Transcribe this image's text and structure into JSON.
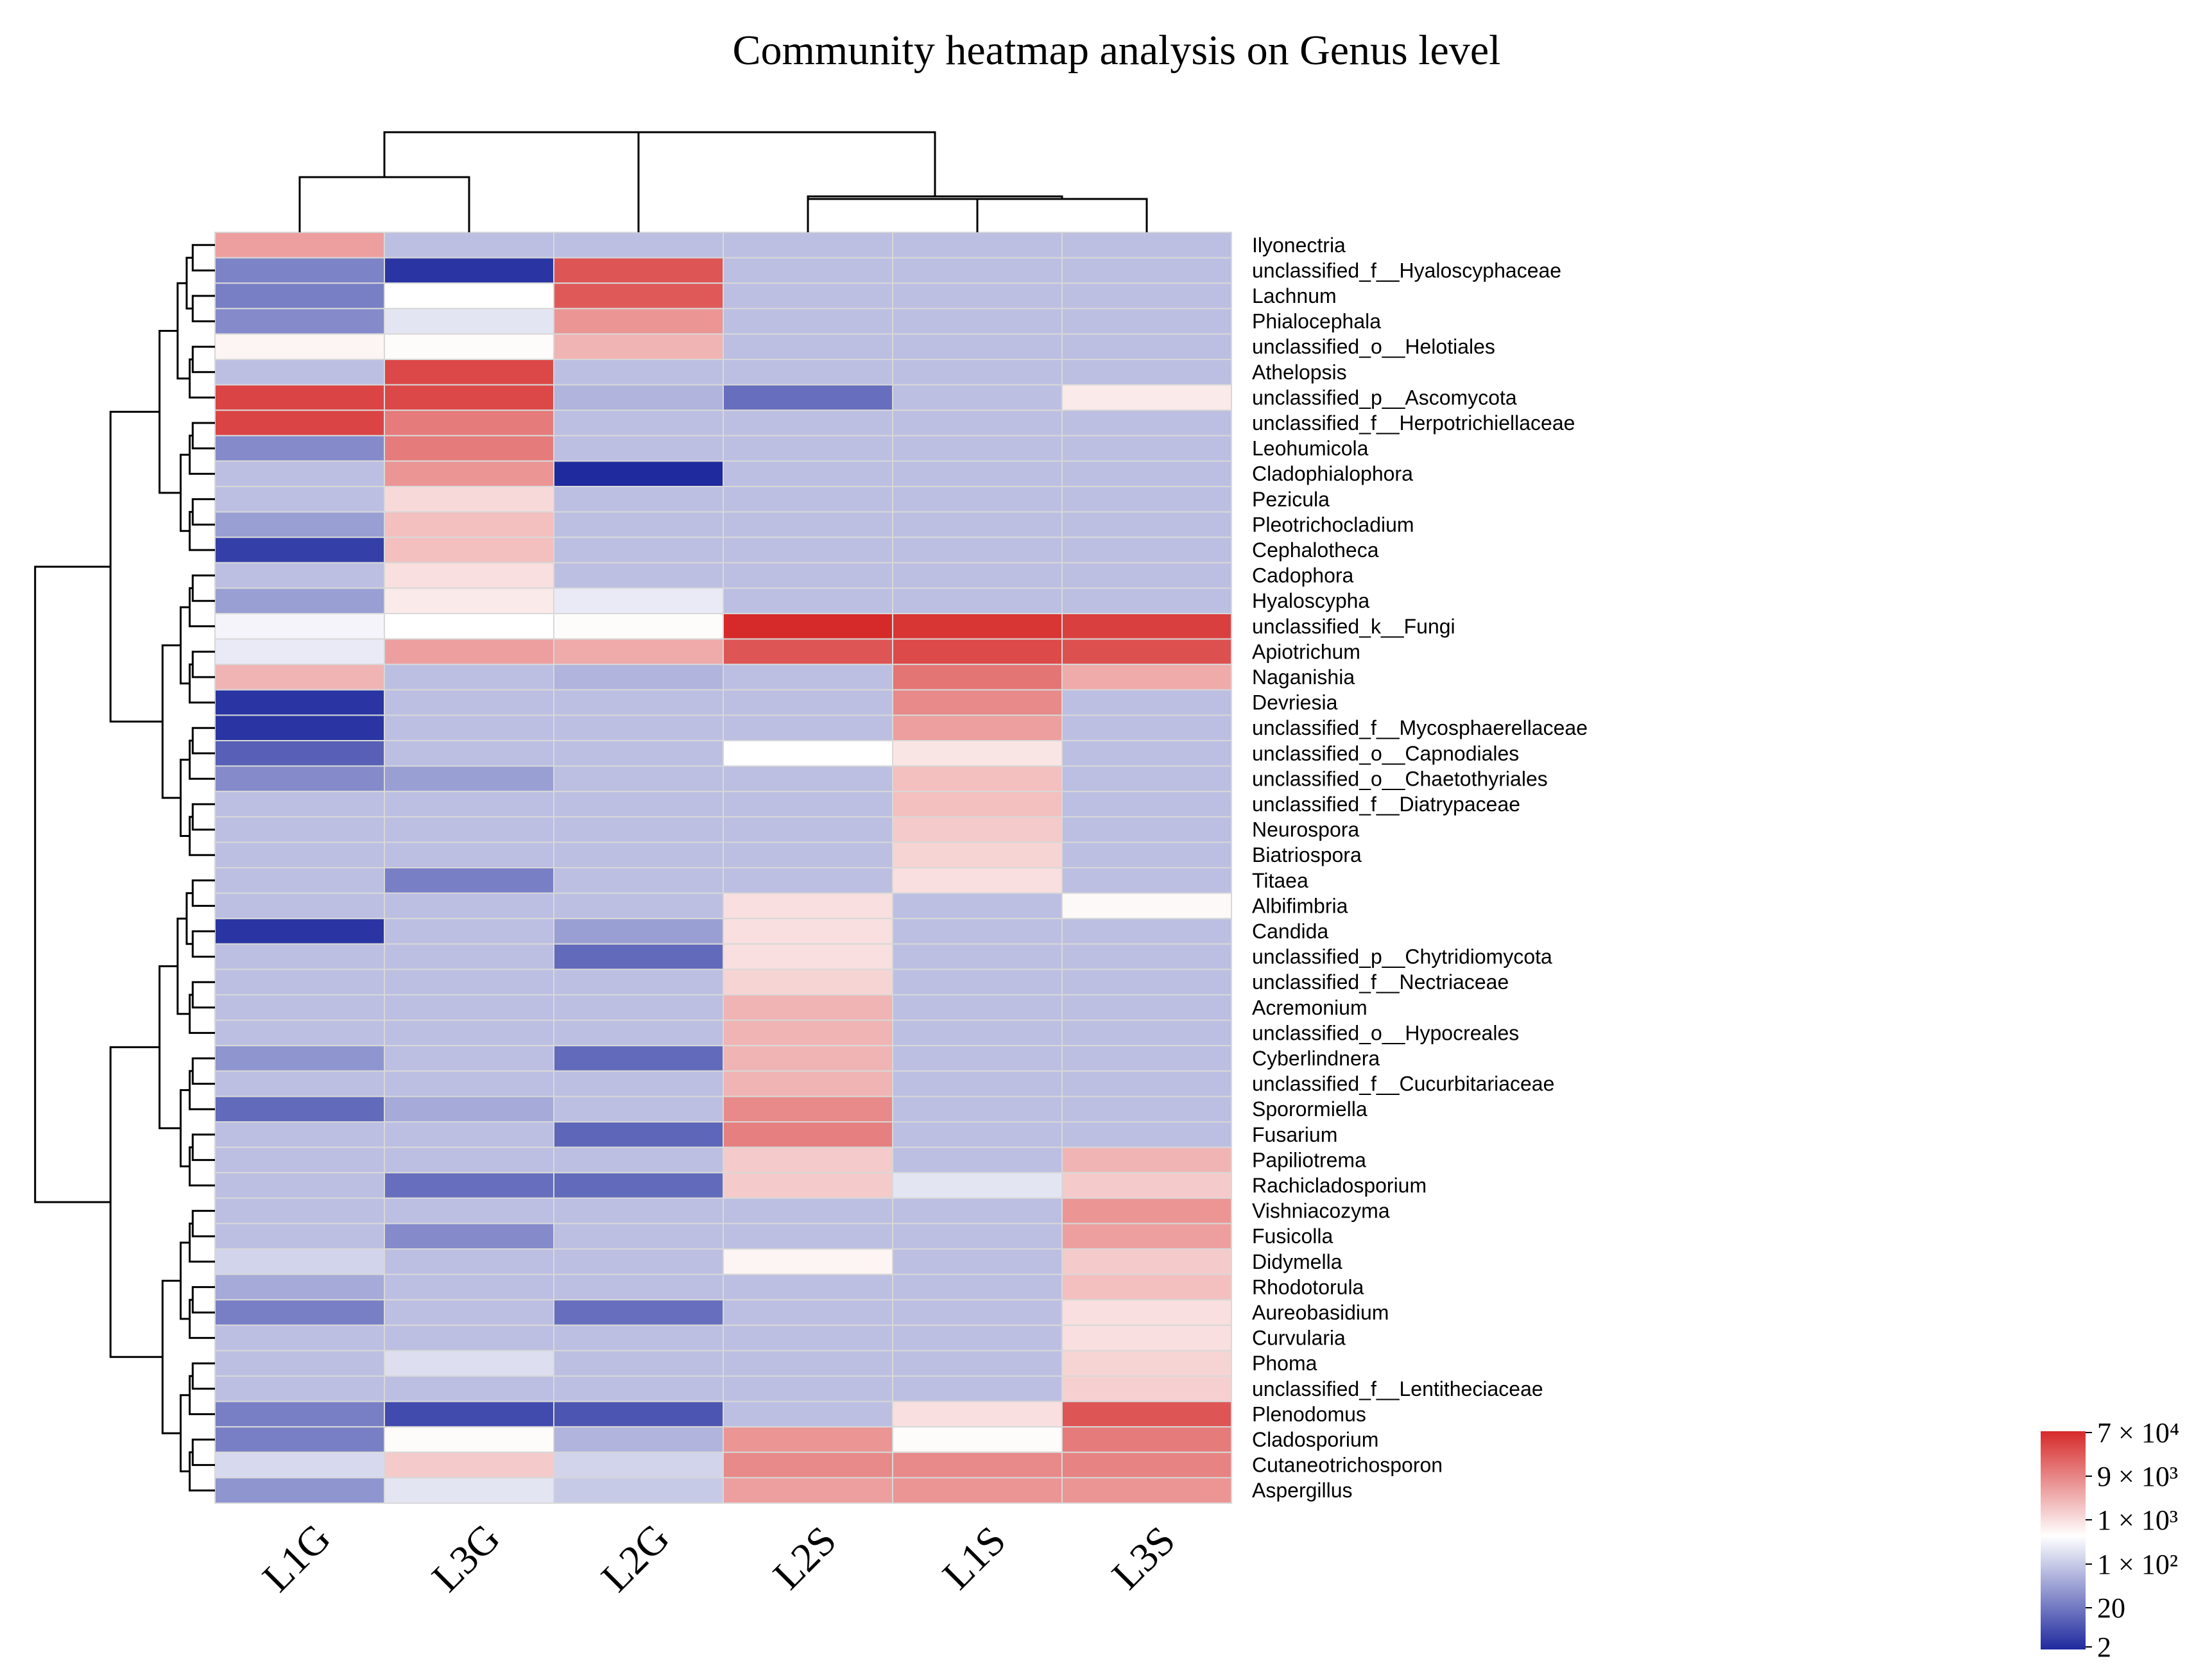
{
  "chart_data": {
    "type": "heatmap",
    "title": "Community heatmap analysis on Genus level",
    "columns": [
      "L1G",
      "L3G",
      "L2G",
      "L2S",
      "L1S",
      "L3S"
    ],
    "rows": [
      "Ilyonectria",
      "unclassified_f__Hyaloscyphaceae",
      "Lachnum",
      "Phialocephala",
      "unclassified_o__Helotiales",
      "Athelopsis",
      "unclassified_p__Ascomycota",
      "unclassified_f__Herpotrichiellaceae",
      "Leohumicola",
      "Cladophialophora",
      "Pezicula",
      "Pleotrichocladium",
      "Cephalotheca",
      "Cadophora",
      "Hyaloscypha",
      "unclassified_k__Fungi",
      "Apiotrichum",
      "Naganishia",
      "Devriesia",
      "unclassified_f__Mycosphaerellaceae",
      "unclassified_o__Capnodiales",
      "unclassified_o__Chaetothyriales",
      "unclassified_f__Diatrypaceae",
      "Neurospora",
      "Biatriospora",
      "Titaea",
      "Albifimbria",
      "Candida",
      "unclassified_p__Chytridiomycota",
      "unclassified_f__Nectriaceae",
      "Acremonium",
      "unclassified_o__Hypocreales",
      "Cyberlindnera",
      "unclassified_f__Cucurbitariaceae",
      "Sporormiella",
      "Fusarium",
      "Papiliotrema",
      "Rachicladosporium",
      "Vishniacozyma",
      "Fusicolla",
      "Didymella",
      "Rhodotorula",
      "Aureobasidium",
      "Curvularia",
      "Phoma",
      "unclassified_f__Lentitheciaceae",
      "Plenodomus",
      "Cladosporium",
      "Cutaneotrichosporon",
      "Aspergillus"
    ],
    "color_scale_note": "values are signed color positions: -1 = dark blue (2), 0 = white (~200), +1 = red (7 x 10^4); background taxa absent ~ -0.28",
    "values": [
      [
        0.45,
        -0.3,
        -0.3,
        -0.3,
        -0.3,
        -0.3
      ],
      [
        -0.58,
        -0.95,
        0.8,
        -0.3,
        -0.3,
        -0.3
      ],
      [
        -0.6,
        0.0,
        0.78,
        -0.3,
        -0.3,
        -0.3
      ],
      [
        -0.55,
        -0.12,
        0.5,
        -0.3,
        -0.3,
        -0.3
      ],
      [
        0.05,
        0.02,
        0.35,
        -0.3,
        -0.3,
        -0.3
      ],
      [
        -0.3,
        0.86,
        -0.3,
        -0.3,
        -0.3,
        -0.3
      ],
      [
        0.88,
        0.86,
        -0.35,
        -0.68,
        -0.3,
        0.1
      ],
      [
        0.88,
        0.62,
        -0.3,
        -0.3,
        -0.3,
        -0.3
      ],
      [
        -0.55,
        0.62,
        -0.3,
        -0.3,
        -0.3,
        -0.3
      ],
      [
        -0.3,
        0.5,
        -1.0,
        -0.3,
        -0.3,
        -0.3
      ],
      [
        -0.3,
        0.18,
        -0.3,
        -0.3,
        -0.3,
        -0.3
      ],
      [
        -0.45,
        0.3,
        -0.3,
        -0.3,
        -0.3,
        -0.3
      ],
      [
        -0.9,
        0.3,
        -0.3,
        -0.3,
        -0.3,
        -0.3
      ],
      [
        -0.3,
        0.15,
        -0.3,
        -0.3,
        -0.3,
        -0.3
      ],
      [
        -0.45,
        0.1,
        -0.1,
        -0.3,
        -0.3,
        -0.3
      ],
      [
        -0.05,
        0.0,
        0.02,
        1.0,
        0.95,
        0.9
      ],
      [
        -0.1,
        0.45,
        0.4,
        0.8,
        0.85,
        0.82
      ],
      [
        0.35,
        -0.3,
        -0.35,
        -0.3,
        0.65,
        0.4
      ],
      [
        -0.95,
        -0.3,
        -0.3,
        -0.3,
        0.55,
        -0.3
      ],
      [
        -0.95,
        -0.3,
        -0.3,
        -0.3,
        0.45,
        -0.3
      ],
      [
        -0.75,
        -0.3,
        -0.3,
        0.0,
        0.12,
        -0.3
      ],
      [
        -0.55,
        -0.45,
        -0.3,
        -0.3,
        0.3,
        -0.3
      ],
      [
        -0.3,
        -0.3,
        -0.3,
        -0.3,
        0.3,
        -0.3
      ],
      [
        -0.3,
        -0.3,
        -0.3,
        -0.3,
        0.25,
        -0.3
      ],
      [
        -0.3,
        -0.3,
        -0.3,
        -0.3,
        0.2,
        -0.3
      ],
      [
        -0.3,
        -0.6,
        -0.3,
        -0.3,
        0.15,
        -0.3
      ],
      [
        -0.3,
        -0.3,
        -0.3,
        0.15,
        -0.3,
        0.03
      ],
      [
        -0.95,
        -0.3,
        -0.45,
        0.15,
        -0.3,
        -0.3
      ],
      [
        -0.3,
        -0.3,
        -0.7,
        0.15,
        -0.3,
        -0.3
      ],
      [
        -0.3,
        -0.3,
        -0.3,
        0.2,
        -0.3,
        -0.3
      ],
      [
        -0.3,
        -0.3,
        -0.3,
        0.35,
        -0.3,
        -0.3
      ],
      [
        -0.3,
        -0.3,
        -0.3,
        0.35,
        -0.3,
        -0.3
      ],
      [
        -0.5,
        -0.3,
        -0.7,
        0.35,
        -0.3,
        -0.3
      ],
      [
        -0.3,
        -0.3,
        -0.3,
        0.35,
        -0.3,
        -0.3
      ],
      [
        -0.7,
        -0.4,
        -0.3,
        0.55,
        -0.3,
        -0.3
      ],
      [
        -0.3,
        -0.3,
        -0.72,
        0.6,
        -0.3,
        -0.3
      ],
      [
        -0.3,
        -0.3,
        -0.3,
        0.25,
        -0.3,
        0.35
      ],
      [
        -0.3,
        -0.68,
        -0.7,
        0.25,
        -0.12,
        0.25
      ],
      [
        -0.3,
        -0.3,
        -0.3,
        -0.3,
        -0.3,
        0.5
      ],
      [
        -0.3,
        -0.55,
        -0.3,
        -0.3,
        -0.3,
        0.45
      ],
      [
        -0.2,
        -0.3,
        -0.3,
        0.05,
        -0.3,
        0.25
      ],
      [
        -0.4,
        -0.3,
        -0.3,
        -0.3,
        -0.3,
        0.3
      ],
      [
        -0.6,
        -0.3,
        -0.68,
        -0.3,
        -0.3,
        0.15
      ],
      [
        -0.3,
        -0.3,
        -0.3,
        -0.3,
        -0.3,
        0.15
      ],
      [
        -0.3,
        -0.15,
        -0.3,
        -0.3,
        -0.3,
        0.2
      ],
      [
        -0.3,
        -0.3,
        -0.3,
        -0.3,
        -0.3,
        0.22
      ],
      [
        -0.6,
        -0.85,
        -0.8,
        -0.3,
        0.15,
        0.8
      ],
      [
        -0.6,
        0.02,
        -0.35,
        0.5,
        0.02,
        0.62
      ],
      [
        -0.18,
        0.25,
        -0.2,
        0.55,
        0.55,
        0.58
      ],
      [
        -0.5,
        -0.12,
        -0.25,
        0.45,
        0.5,
        0.5
      ]
    ],
    "legend": {
      "title": "",
      "ticks": [
        "7 × 10⁴",
        "9 × 10³",
        "1 × 10³",
        "1 × 10²",
        "20",
        "2"
      ],
      "colors": {
        "low": "#1f2a9e",
        "mid": "#ffffff",
        "high": "#d62a2a"
      }
    }
  }
}
